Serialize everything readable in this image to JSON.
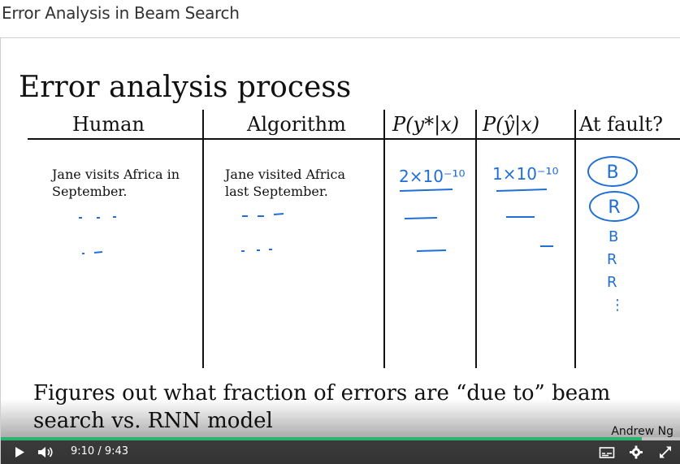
{
  "page": {
    "title": "Error Analysis in Beam Search"
  },
  "slide": {
    "heading": "Error analysis process",
    "columns": {
      "human": "Human",
      "algorithm": "Algorithm",
      "p_ystar": "P(y*|x)",
      "p_yhat": "P(ŷ|x)",
      "fault": "At fault?"
    },
    "row1": {
      "human_line1": "Jane visits Africa in",
      "human_line2": "September.",
      "algo_line1": "Jane visited Africa",
      "algo_line2": "last September.",
      "p_ystar": "2×10⁻¹⁰",
      "p_yhat": "1×10⁻¹⁰"
    },
    "faults": [
      "B",
      "R",
      "B",
      "R",
      "R",
      "⋮"
    ],
    "caption_line1": "Figures out what fraction of errors are “due to” beam",
    "caption_line2": "search vs. RNN model",
    "author": "Andrew Ng"
  },
  "player": {
    "current_time": "9:10",
    "separator": "/",
    "duration": "9:43",
    "progress": 0.943
  }
}
